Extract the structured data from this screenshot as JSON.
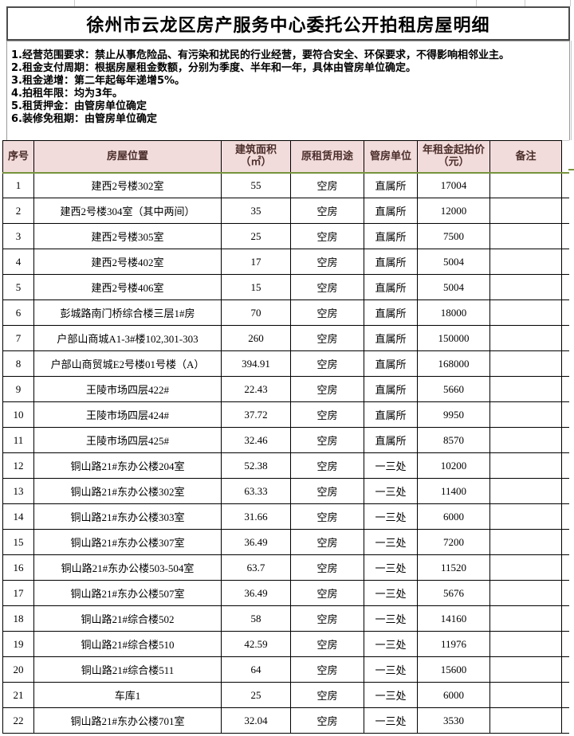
{
  "doc": {
    "title": "徐州市云龙区房产服务中心委托公开拍租房屋明细",
    "notes": [
      "1.经营范围要求：禁止从事危险品、有污染和扰民的行业经营，要符合安全、环保要求，不得影响相邻业主。",
      "2.租金支付周期：根据房屋租金数额，分别为季度、半年和一年，具体由管房单位确定。",
      "3.租金递增：第二年起每年递增5%。",
      "4.拍租年限：均为3年。",
      "5.租赁押金：由管房单位确定",
      "6.装修免租期：由管房单位确定"
    ],
    "table": {
      "headers": [
        "序号",
        "房屋位置",
        "建筑面积\n（㎡）",
        "原租赁用途",
        "管房单位",
        "年租金起拍价\n（元）",
        "备注"
      ],
      "rows": [
        [
          "1",
          "建西2号楼302室",
          "55",
          "空房",
          "直属所",
          "17004",
          ""
        ],
        [
          "2",
          "建西2号楼304室（其中两间）",
          "35",
          "空房",
          "直属所",
          "12000",
          ""
        ],
        [
          "3",
          "建西2号楼305室",
          "25",
          "空房",
          "直属所",
          "7500",
          ""
        ],
        [
          "4",
          "建西2号楼402室",
          "17",
          "空房",
          "直属所",
          "5004",
          ""
        ],
        [
          "5",
          "建西2号楼406室",
          "15",
          "空房",
          "直属所",
          "5004",
          ""
        ],
        [
          "6",
          "彭城路南门桥综合楼三层1#房",
          "70",
          "空房",
          "直属所",
          "18000",
          ""
        ],
        [
          "7",
          "户部山商城A1-3#楼102,301-303",
          "260",
          "空房",
          "直属所",
          "150000",
          ""
        ],
        [
          "8",
          "户部山商贸城E2号楼01号楼（A）",
          "394.91",
          "空房",
          "直属所",
          "168000",
          ""
        ],
        [
          "9",
          "王陵市场四层422#",
          "22.43",
          "空房",
          "直属所",
          "5660",
          ""
        ],
        [
          "10",
          "王陵市场四层424#",
          "37.72",
          "空房",
          "直属所",
          "9950",
          ""
        ],
        [
          "11",
          "王陵市场四层425#",
          "32.46",
          "空房",
          "直属所",
          "8570",
          ""
        ],
        [
          "12",
          "铜山路21#东办公楼204室",
          "52.38",
          "空房",
          "一三处",
          "10200",
          ""
        ],
        [
          "13",
          "铜山路21#东办公楼302室",
          "63.33",
          "空房",
          "一三处",
          "11400",
          ""
        ],
        [
          "14",
          "铜山路21#东办公楼303室",
          "31.66",
          "空房",
          "一三处",
          "6000",
          ""
        ],
        [
          "15",
          "铜山路21#东办公楼307室",
          "36.49",
          "空房",
          "一三处",
          "7200",
          ""
        ],
        [
          "16",
          "铜山路21#东办公楼503-504室",
          "63.7",
          "空房",
          "一三处",
          "11520",
          ""
        ],
        [
          "17",
          "铜山路21#东办公楼507室",
          "36.49",
          "空房",
          "一三处",
          "5676",
          ""
        ],
        [
          "18",
          "铜山路21#综合楼502",
          "58",
          "空房",
          "一三处",
          "14160",
          ""
        ],
        [
          "19",
          "铜山路21#综合楼510",
          "42.59",
          "空房",
          "一三处",
          "11976",
          ""
        ],
        [
          "20",
          "铜山路21#综合楼511",
          "64",
          "空房",
          "一三处",
          "15600",
          ""
        ],
        [
          "21",
          "车库1",
          "25",
          "空房",
          "一三处",
          "6000",
          ""
        ],
        [
          "22",
          "铜山路21#东办公楼701室",
          "32.04",
          "空房",
          "一三处",
          "3530",
          ""
        ]
      ]
    },
    "colors": {
      "header_bg": "#F2DCDB",
      "header_text": "#4B2E2B",
      "header_underline_green": "#77933C",
      "cell_border": "#000000",
      "box_border_gray": "#9A9A9A"
    }
  }
}
